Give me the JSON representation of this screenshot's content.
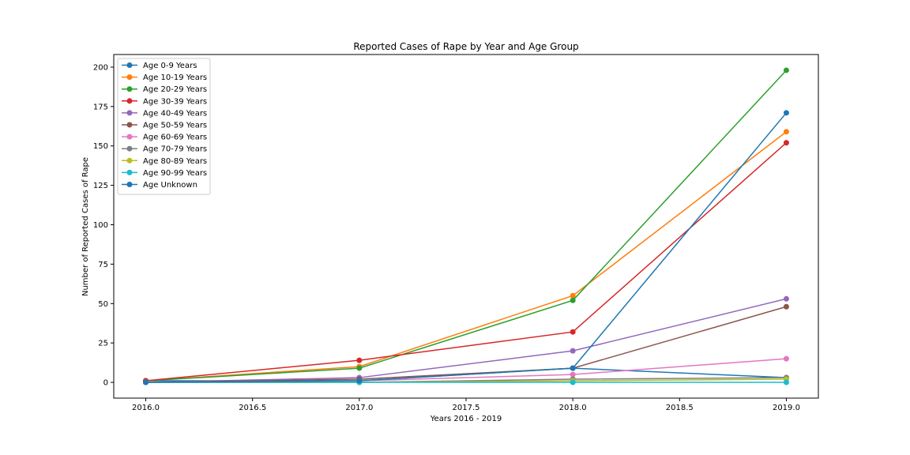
{
  "chart_data": {
    "type": "line",
    "title": "Reported Cases of Rape by Year and Age Group",
    "xlabel": "Years 2016 - 2019",
    "ylabel": "Number of Reported Cases of Rape",
    "x": [
      2016,
      2017,
      2018,
      2019
    ],
    "xlim": [
      2015.85,
      2019.15
    ],
    "ylim": [
      -10,
      208
    ],
    "xticks": [
      2016.0,
      2016.5,
      2017.0,
      2017.5,
      2018.0,
      2018.5,
      2019.0
    ],
    "xtick_labels": [
      "2016.0",
      "2016.5",
      "2017.0",
      "2017.5",
      "2018.0",
      "2018.5",
      "2019.0"
    ],
    "yticks": [
      0,
      25,
      50,
      75,
      100,
      125,
      150,
      175,
      200
    ],
    "ytick_labels": [
      "0",
      "25",
      "50",
      "75",
      "100",
      "125",
      "150",
      "175",
      "200"
    ],
    "grid": false,
    "legend_position": "top-left",
    "series": [
      {
        "name": "Age 0-9 Years",
        "color": "#1f77b4",
        "values": [
          1,
          1,
          9,
          3
        ]
      },
      {
        "name": "Age 10-19 Years",
        "color": "#ff7f0e",
        "values": [
          1,
          10,
          55,
          159
        ]
      },
      {
        "name": "Age 20-29 Years",
        "color": "#2ca02c",
        "values": [
          1,
          9,
          52,
          198
        ]
      },
      {
        "name": "Age 30-39 Years",
        "color": "#d62728",
        "values": [
          1,
          14,
          32,
          152
        ]
      },
      {
        "name": "Age 40-49 Years",
        "color": "#9467bd",
        "values": [
          0,
          3,
          20,
          53
        ]
      },
      {
        "name": "Age 50-59 Years",
        "color": "#8c564b",
        "values": [
          0,
          2,
          9,
          48
        ]
      },
      {
        "name": "Age 60-69 Years",
        "color": "#e377c2",
        "values": [
          0,
          1,
          5,
          15
        ]
      },
      {
        "name": "Age 70-79 Years",
        "color": "#7f7f7f",
        "values": [
          0,
          0,
          2,
          3
        ]
      },
      {
        "name": "Age 80-89 Years",
        "color": "#bcbd22",
        "values": [
          0,
          0,
          1,
          2
        ]
      },
      {
        "name": "Age 90-99 Years",
        "color": "#17becf",
        "values": [
          0,
          0,
          0,
          0
        ]
      },
      {
        "name": "Age Unknown",
        "color": "#1f77b4",
        "values": [
          0,
          1,
          9,
          171
        ]
      }
    ]
  }
}
